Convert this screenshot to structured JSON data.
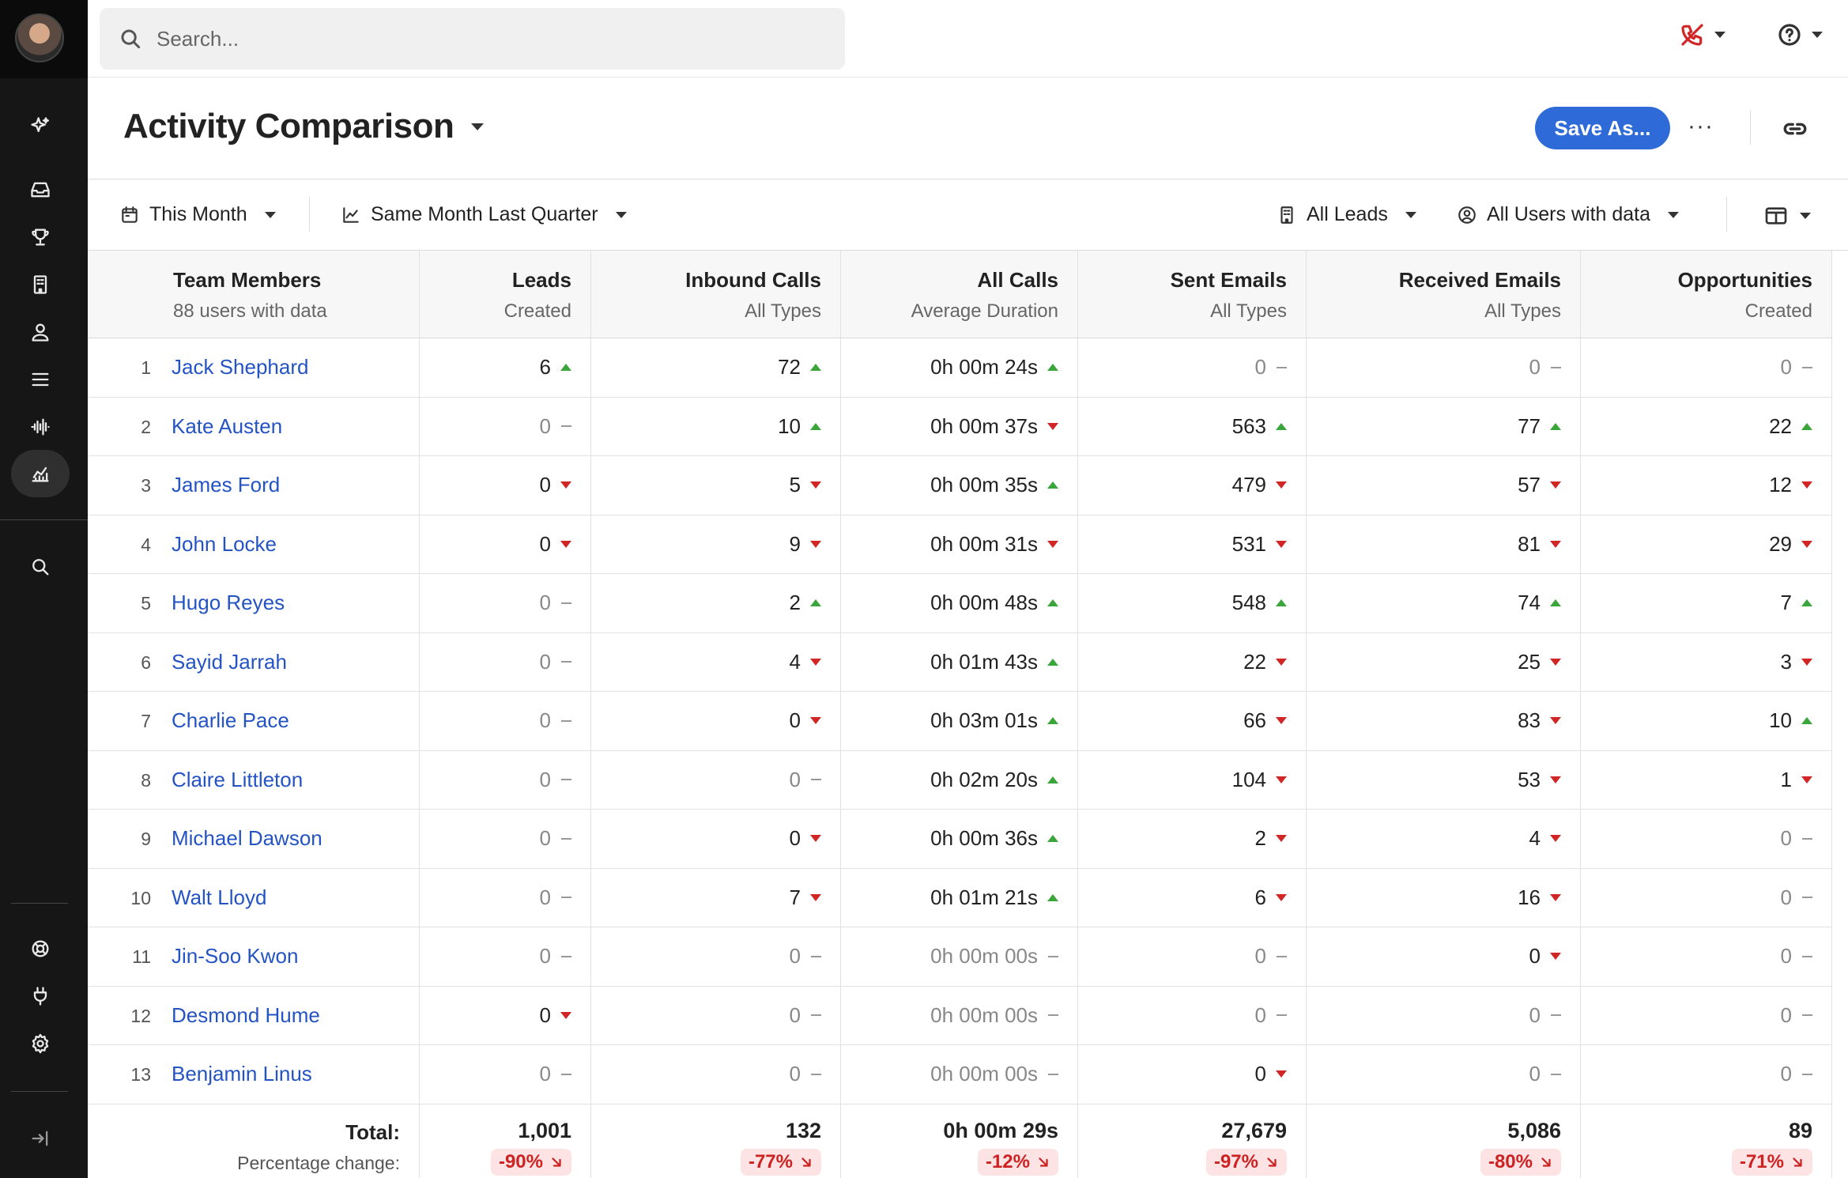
{
  "search": {
    "placeholder": "Search..."
  },
  "header": {
    "title": "Activity Comparison",
    "save_label": "Save As...",
    "more_label": "···"
  },
  "filters": {
    "period": "This Month",
    "compare": "Same Month Last Quarter",
    "leads": "All Leads",
    "users": "All Users with data"
  },
  "columns": [
    {
      "title": "Team Members",
      "sub": "88 users with data"
    },
    {
      "title": "Leads",
      "sub": "Created"
    },
    {
      "title": "Inbound Calls",
      "sub": "All Types"
    },
    {
      "title": "All Calls",
      "sub": "Average Duration"
    },
    {
      "title": "Sent Emails",
      "sub": "All Types"
    },
    {
      "title": "Received Emails",
      "sub": "All Types"
    },
    {
      "title": "Opportunities",
      "sub": "Created"
    }
  ],
  "rows": [
    {
      "num": "1",
      "name": "Jack Shephard",
      "values": [
        [
          "6",
          "up"
        ],
        [
          "72",
          "up"
        ],
        [
          "0h 00m 24s",
          "up"
        ],
        [
          "0",
          "flat"
        ],
        [
          "0",
          "flat"
        ],
        [
          "0",
          "flat"
        ]
      ]
    },
    {
      "num": "2",
      "name": "Kate Austen",
      "values": [
        [
          "0",
          "flat"
        ],
        [
          "10",
          "up"
        ],
        [
          "0h 00m 37s",
          "down"
        ],
        [
          "563",
          "up"
        ],
        [
          "77",
          "up"
        ],
        [
          "22",
          "up"
        ]
      ]
    },
    {
      "num": "3",
      "name": "James Ford",
      "values": [
        [
          "0",
          "down"
        ],
        [
          "5",
          "down"
        ],
        [
          "0h 00m 35s",
          "up"
        ],
        [
          "479",
          "down"
        ],
        [
          "57",
          "down"
        ],
        [
          "12",
          "down"
        ]
      ]
    },
    {
      "num": "4",
      "name": "John Locke",
      "values": [
        [
          "0",
          "down"
        ],
        [
          "9",
          "down"
        ],
        [
          "0h 00m 31s",
          "down"
        ],
        [
          "531",
          "down"
        ],
        [
          "81",
          "down"
        ],
        [
          "29",
          "down"
        ]
      ]
    },
    {
      "num": "5",
      "name": "Hugo Reyes",
      "values": [
        [
          "0",
          "flat"
        ],
        [
          "2",
          "up"
        ],
        [
          "0h 00m 48s",
          "up"
        ],
        [
          "548",
          "up"
        ],
        [
          "74",
          "up"
        ],
        [
          "7",
          "up"
        ]
      ]
    },
    {
      "num": "6",
      "name": "Sayid Jarrah",
      "values": [
        [
          "0",
          "flat"
        ],
        [
          "4",
          "down"
        ],
        [
          "0h 01m 43s",
          "up"
        ],
        [
          "22",
          "down"
        ],
        [
          "25",
          "down"
        ],
        [
          "3",
          "down"
        ]
      ]
    },
    {
      "num": "7",
      "name": "Charlie Pace",
      "values": [
        [
          "0",
          "flat"
        ],
        [
          "0",
          "down"
        ],
        [
          "0h 03m 01s",
          "up"
        ],
        [
          "66",
          "down"
        ],
        [
          "83",
          "down"
        ],
        [
          "10",
          "up"
        ]
      ]
    },
    {
      "num": "8",
      "name": "Claire Littleton",
      "values": [
        [
          "0",
          "flat"
        ],
        [
          "0",
          "flat"
        ],
        [
          "0h 02m 20s",
          "up"
        ],
        [
          "104",
          "down"
        ],
        [
          "53",
          "down"
        ],
        [
          "1",
          "down"
        ]
      ]
    },
    {
      "num": "9",
      "name": "Michael Dawson",
      "values": [
        [
          "0",
          "flat"
        ],
        [
          "0",
          "down"
        ],
        [
          "0h 00m 36s",
          "up"
        ],
        [
          "2",
          "down"
        ],
        [
          "4",
          "down"
        ],
        [
          "0",
          "flat"
        ]
      ]
    },
    {
      "num": "10",
      "name": "Walt Lloyd",
      "values": [
        [
          "0",
          "flat"
        ],
        [
          "7",
          "down"
        ],
        [
          "0h 01m 21s",
          "up"
        ],
        [
          "6",
          "down"
        ],
        [
          "16",
          "down"
        ],
        [
          "0",
          "flat"
        ]
      ]
    },
    {
      "num": "11",
      "name": "Jin-Soo Kwon",
      "values": [
        [
          "0",
          "flat"
        ],
        [
          "0",
          "flat"
        ],
        [
          "0h 00m 00s",
          "flat"
        ],
        [
          "0",
          "flat"
        ],
        [
          "0",
          "down"
        ],
        [
          "0",
          "flat"
        ]
      ]
    },
    {
      "num": "12",
      "name": "Desmond Hume",
      "values": [
        [
          "0",
          "down"
        ],
        [
          "0",
          "flat"
        ],
        [
          "0h 00m 00s",
          "flat"
        ],
        [
          "0",
          "flat"
        ],
        [
          "0",
          "flat"
        ],
        [
          "0",
          "flat"
        ]
      ]
    },
    {
      "num": "13",
      "name": "Benjamin Linus",
      "values": [
        [
          "0",
          "flat"
        ],
        [
          "0",
          "flat"
        ],
        [
          "0h 00m 00s",
          "flat"
        ],
        [
          "0",
          "down"
        ],
        [
          "0",
          "flat"
        ],
        [
          "0",
          "flat"
        ]
      ]
    }
  ],
  "totals": {
    "label": "Total:",
    "sub_label": "Percentage change:",
    "values": [
      "1,001",
      "132",
      "0h 00m 29s",
      "27,679",
      "5,086",
      "89"
    ],
    "changes": [
      "-90%",
      "-77%",
      "-12%",
      "-97%",
      "-80%",
      "-71%"
    ]
  },
  "colors": {
    "accent": "#2f6bd8",
    "link": "#2453c4",
    "up": "#3aa53a",
    "down": "#d02626",
    "sidebar": "#161616"
  }
}
